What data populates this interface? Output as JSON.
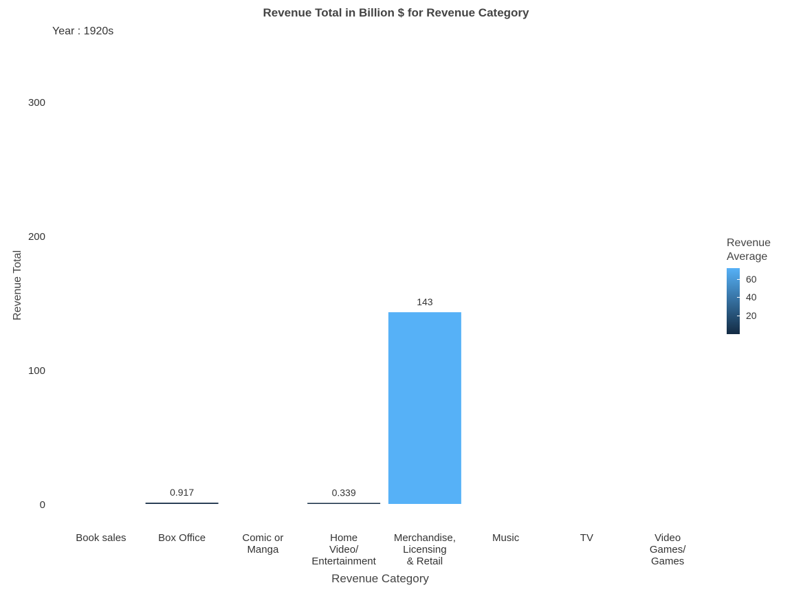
{
  "chart_data": {
    "type": "bar",
    "title": "Revenue Total in Billion $ for Revenue Category",
    "subtitle": "Year : 1920s",
    "xlabel": "Revenue Category",
    "ylabel": "Revenue Total",
    "categories": [
      "Book sales",
      "Box Office",
      "Comic or Manga",
      "Home Video/ Entertainment",
      "Merchandise, Licensing & Retail",
      "Music",
      "TV",
      "Video Games/ Games"
    ],
    "category_lines": [
      [
        "Book sales"
      ],
      [
        "Box Office"
      ],
      [
        "Comic or",
        "Manga"
      ],
      [
        "Home",
        "Video/",
        "Entertainment"
      ],
      [
        "Merchandise,",
        "Licensing",
        "& Retail"
      ],
      [
        "Music"
      ],
      [
        "TV"
      ],
      [
        "Video",
        "Games/",
        "Games"
      ]
    ],
    "values": [
      null,
      0.917,
      null,
      0.339,
      143,
      null,
      null,
      null
    ],
    "data_labels": [
      "",
      "0.917",
      "",
      "0.339",
      "143",
      "",
      "",
      ""
    ],
    "fill_values": [
      null,
      0.917,
      null,
      0.339,
      71.5,
      null,
      null,
      null
    ],
    "ylim": [
      0,
      350
    ],
    "yticks": [
      0,
      100,
      200,
      300
    ],
    "grid": false,
    "legend": {
      "title_lines": [
        "Revenue",
        "Average"
      ],
      "ticks": [
        20,
        40,
        60
      ],
      "range": [
        0.339,
        71.5
      ],
      "color_low": "#132B43",
      "color_high": "#56B1F7",
      "placement": "right"
    }
  }
}
